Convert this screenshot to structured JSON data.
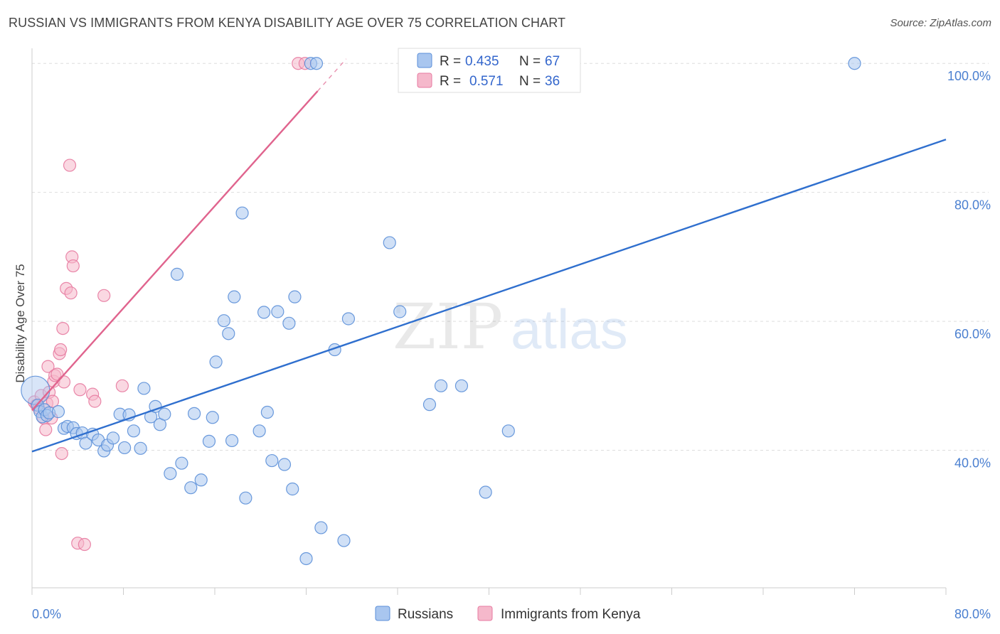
{
  "title": "RUSSIAN VS IMMIGRANTS FROM KENYA DISABILITY AGE OVER 75 CORRELATION CHART",
  "source": "Source: ZipAtlas.com",
  "watermark": {
    "zip": "ZIP",
    "atlas": "atlas"
  },
  "colors": {
    "blue_fill": "#a9c6ef",
    "blue_stroke": "#5b8fd8",
    "blue_line": "#2f6fce",
    "pink_fill": "#f5b8cb",
    "pink_stroke": "#e77aa0",
    "pink_line": "#e0648e",
    "grid": "#dddddd",
    "tick_text": "#4a7fd0"
  },
  "legend": {
    "rows": [
      {
        "r_label": "R =",
        "r_value": "0.435",
        "n_label": "N =",
        "n_value": "67",
        "series": "blue"
      },
      {
        "r_label": "R =",
        "r_value": "0.571",
        "n_label": "N =",
        "n_value": "36",
        "series": "pink"
      }
    ]
  },
  "bottom_legend": [
    {
      "label": "Russians",
      "series": "blue"
    },
    {
      "label": "Immigrants from Kenya",
      "series": "pink"
    }
  ],
  "chart_data": {
    "type": "scatter",
    "title": "RUSSIAN VS IMMIGRANTS FROM KENYA DISABILITY AGE OVER 75 CORRELATION CHART",
    "xlabel": "",
    "ylabel": "Disability Age Over 75",
    "xlim": [
      0,
      80
    ],
    "ylim": [
      20,
      103
    ],
    "x_tick_labels": [
      "0.0%",
      "80.0%"
    ],
    "y_ticks": [
      40,
      60,
      80,
      100
    ],
    "y_tick_labels": [
      "40.0%",
      "60.0%",
      "80.0%",
      "100.0%"
    ],
    "grid": true,
    "legend_position": "top-center",
    "series": [
      {
        "name": "Russians",
        "color": "blue",
        "trend": {
          "x": [
            0,
            80
          ],
          "y": [
            39.8,
            88.2
          ]
        },
        "points": [
          [
            0.3,
            49.3
          ],
          [
            0.5,
            47.0
          ],
          [
            0.7,
            46.0
          ],
          [
            0.9,
            45.2
          ],
          [
            1.1,
            46.3
          ],
          [
            1.3,
            45.4
          ],
          [
            1.5,
            45.8
          ],
          [
            2.3,
            46.0
          ],
          [
            2.8,
            43.4
          ],
          [
            3.1,
            43.7
          ],
          [
            3.6,
            43.5
          ],
          [
            3.9,
            42.6
          ],
          [
            4.4,
            42.7
          ],
          [
            4.7,
            41.1
          ],
          [
            5.3,
            42.5
          ],
          [
            5.8,
            41.6
          ],
          [
            6.3,
            39.9
          ],
          [
            6.6,
            40.8
          ],
          [
            7.1,
            41.9
          ],
          [
            7.7,
            45.6
          ],
          [
            8.1,
            40.4
          ],
          [
            8.5,
            45.5
          ],
          [
            8.9,
            43.0
          ],
          [
            9.5,
            40.3
          ],
          [
            9.8,
            49.6
          ],
          [
            10.4,
            45.2
          ],
          [
            10.8,
            46.8
          ],
          [
            11.2,
            44.0
          ],
          [
            11.6,
            45.6
          ],
          [
            12.1,
            36.4
          ],
          [
            12.7,
            67.3
          ],
          [
            13.1,
            38.0
          ],
          [
            13.9,
            34.2
          ],
          [
            14.2,
            45.7
          ],
          [
            14.8,
            35.4
          ],
          [
            15.5,
            41.4
          ],
          [
            15.8,
            45.1
          ],
          [
            16.1,
            53.7
          ],
          [
            16.8,
            60.1
          ],
          [
            17.2,
            58.1
          ],
          [
            17.5,
            41.5
          ],
          [
            17.7,
            63.8
          ],
          [
            18.4,
            76.8
          ],
          [
            18.7,
            32.6
          ],
          [
            19.9,
            43.0
          ],
          [
            20.3,
            61.4
          ],
          [
            20.6,
            45.9
          ],
          [
            21.0,
            38.4
          ],
          [
            21.5,
            61.5
          ],
          [
            22.1,
            37.8
          ],
          [
            22.5,
            59.7
          ],
          [
            22.8,
            34.0
          ],
          [
            23.0,
            63.8
          ],
          [
            24.0,
            23.2
          ],
          [
            24.4,
            100.0
          ],
          [
            24.9,
            100.0
          ],
          [
            25.3,
            28.0
          ],
          [
            26.5,
            55.6
          ],
          [
            27.3,
            26.0
          ],
          [
            27.7,
            60.4
          ],
          [
            31.3,
            72.2
          ],
          [
            32.2,
            61.5
          ],
          [
            34.8,
            47.1
          ],
          [
            35.8,
            50.0
          ],
          [
            37.6,
            50.0
          ],
          [
            39.7,
            33.5
          ],
          [
            41.7,
            43.0
          ],
          [
            72.0,
            100.0
          ]
        ]
      },
      {
        "name": "Immigrants from Kenya",
        "color": "pink",
        "trend": {
          "x": [
            0,
            25
          ],
          "y": [
            46.2,
            95.7
          ]
        },
        "trend_dashed": {
          "x": [
            25,
            27.5
          ],
          "y": [
            95.7,
            100.7
          ]
        },
        "points": [
          [
            0.2,
            47.5
          ],
          [
            0.4,
            47.0
          ],
          [
            0.6,
            46.5
          ],
          [
            0.8,
            48.5
          ],
          [
            1.0,
            45.0
          ],
          [
            1.2,
            43.2
          ],
          [
            1.3,
            47.3
          ],
          [
            1.4,
            53.0
          ],
          [
            1.5,
            49.0
          ],
          [
            1.7,
            45.0
          ],
          [
            1.8,
            47.6
          ],
          [
            1.9,
            50.7
          ],
          [
            2.0,
            51.6
          ],
          [
            2.2,
            51.8
          ],
          [
            2.4,
            55.0
          ],
          [
            2.5,
            55.6
          ],
          [
            2.6,
            39.5
          ],
          [
            2.7,
            58.9
          ],
          [
            2.8,
            50.6
          ],
          [
            3.0,
            65.1
          ],
          [
            3.3,
            84.2
          ],
          [
            3.4,
            64.4
          ],
          [
            3.5,
            70.0
          ],
          [
            3.6,
            68.6
          ],
          [
            4.0,
            25.6
          ],
          [
            4.2,
            49.4
          ],
          [
            4.6,
            25.4
          ],
          [
            5.3,
            48.7
          ],
          [
            5.5,
            47.6
          ],
          [
            6.3,
            64.0
          ],
          [
            7.9,
            50.0
          ],
          [
            23.3,
            100.0
          ],
          [
            23.9,
            100.0
          ]
        ]
      }
    ]
  }
}
